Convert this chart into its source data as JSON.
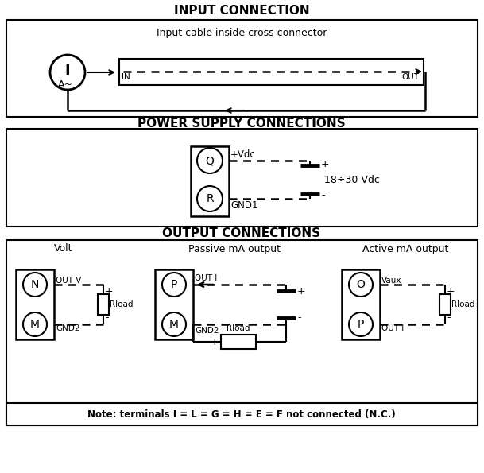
{
  "bg_color": "#ffffff",
  "title1": "INPUT CONNECTION",
  "title2": "POWER SUPPLY CONNECTIONS",
  "title3": "OUTPUT CONNECTIONS",
  "note": "Note: terminals I = L = G = H = E = F not connected (N.C.)",
  "input_label": "Input cable inside cross connector"
}
